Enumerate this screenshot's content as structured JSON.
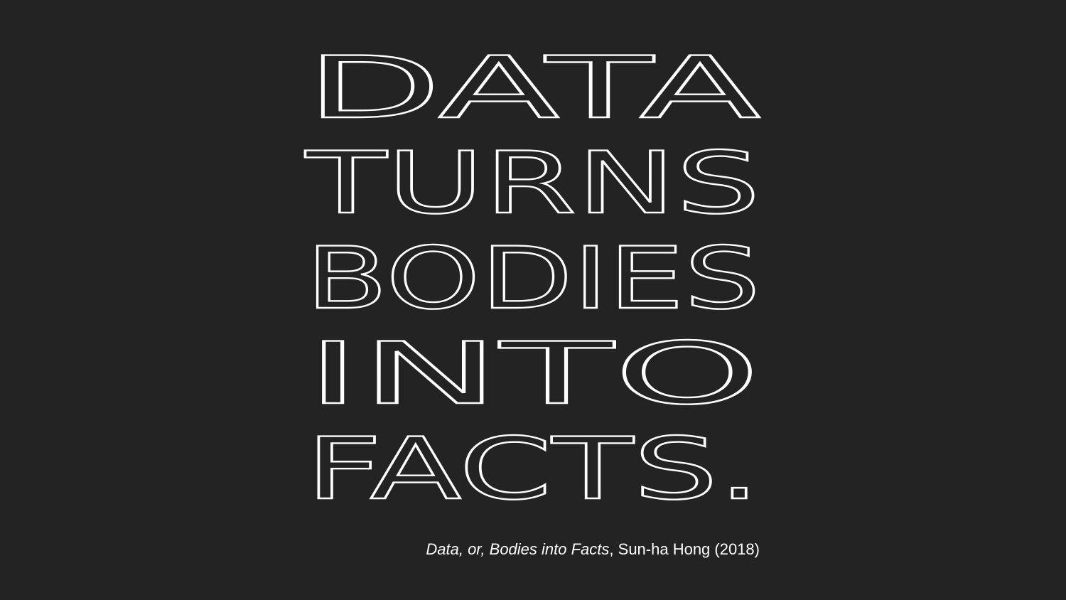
{
  "headline": {
    "lines": [
      "DATA",
      "TURNS",
      "BODIES",
      "INTO",
      "FACTS."
    ]
  },
  "caption": {
    "title": "Data, or, Bodies into Facts",
    "separator": ",",
    "author_year": " Sun-ha Hong (2018)"
  },
  "colors": {
    "background": "#232323",
    "text": "#ffffff"
  }
}
